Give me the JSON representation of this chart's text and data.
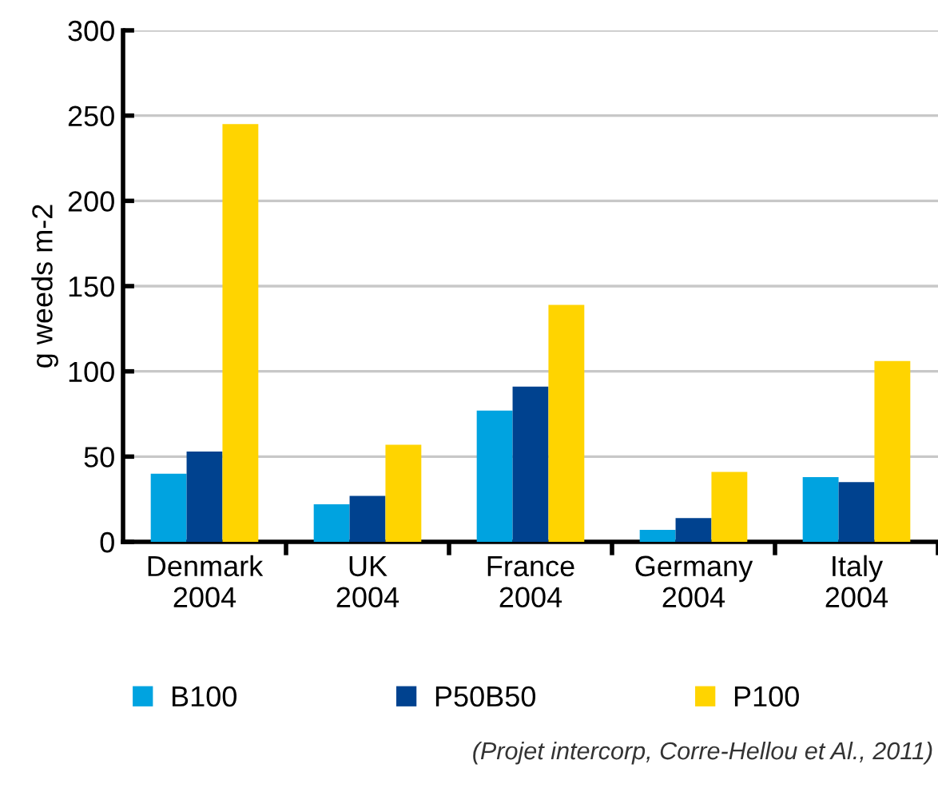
{
  "chart_data": {
    "type": "bar",
    "categories": [
      "Denmark\n2004",
      "UK\n2004",
      "France\n2004",
      "Germany\n2004",
      "Italy\n2004"
    ],
    "series": [
      {
        "name": "B100",
        "color": "#00a3e0",
        "values": [
          40,
          22,
          77,
          7,
          38
        ]
      },
      {
        "name": "P50B50",
        "color": "#00428f",
        "values": [
          53,
          27,
          91,
          14,
          35
        ]
      },
      {
        "name": "P100",
        "color": "#ffd400",
        "values": [
          245,
          57,
          139,
          41,
          106
        ]
      }
    ],
    "ylabel": "g weeds m-2",
    "ylim": [
      0,
      300
    ],
    "yticks": [
      0,
      50,
      100,
      150,
      200,
      250,
      300
    ],
    "grid": "y",
    "legend": "bottom",
    "annotations": [
      "(Projet intercorp, Corre-Hellou et Al., 2011)"
    ]
  }
}
